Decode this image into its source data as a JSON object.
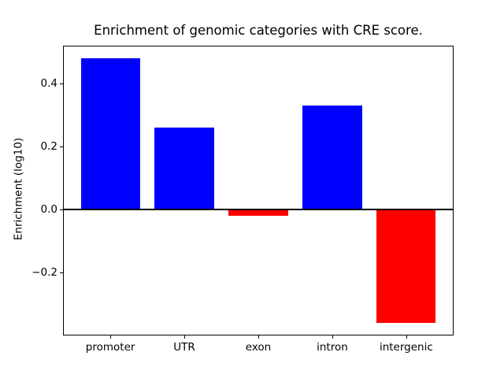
{
  "chart_data": {
    "type": "bar",
    "title": "Enrichment of genomic categories with CRE score.",
    "xlabel": "",
    "ylabel": "Enrichment (log10)",
    "categories": [
      "promoter",
      "UTR",
      "exon",
      "intron",
      "intergenic"
    ],
    "values": [
      0.48,
      0.26,
      -0.02,
      0.33,
      -0.36
    ],
    "colors": [
      "#0000ff",
      "#0000ff",
      "#ff0000",
      "#0000ff",
      "#ff0000"
    ],
    "positive_color": "#0000ff",
    "negative_color": "#ff0000",
    "bar_width": 0.8,
    "ylim": [
      -0.4,
      0.52
    ],
    "xlim": [
      -0.64,
      4.64
    ],
    "yticks": {
      "values": [
        0.4,
        0.2,
        0.0,
        -0.2
      ],
      "labels": [
        "0.4",
        "0.2",
        "0.0",
        "−0.2"
      ]
    },
    "zero_line": true,
    "grid": false,
    "legend": "none",
    "background_color": "#ffffff",
    "axis_color": "#000000"
  }
}
